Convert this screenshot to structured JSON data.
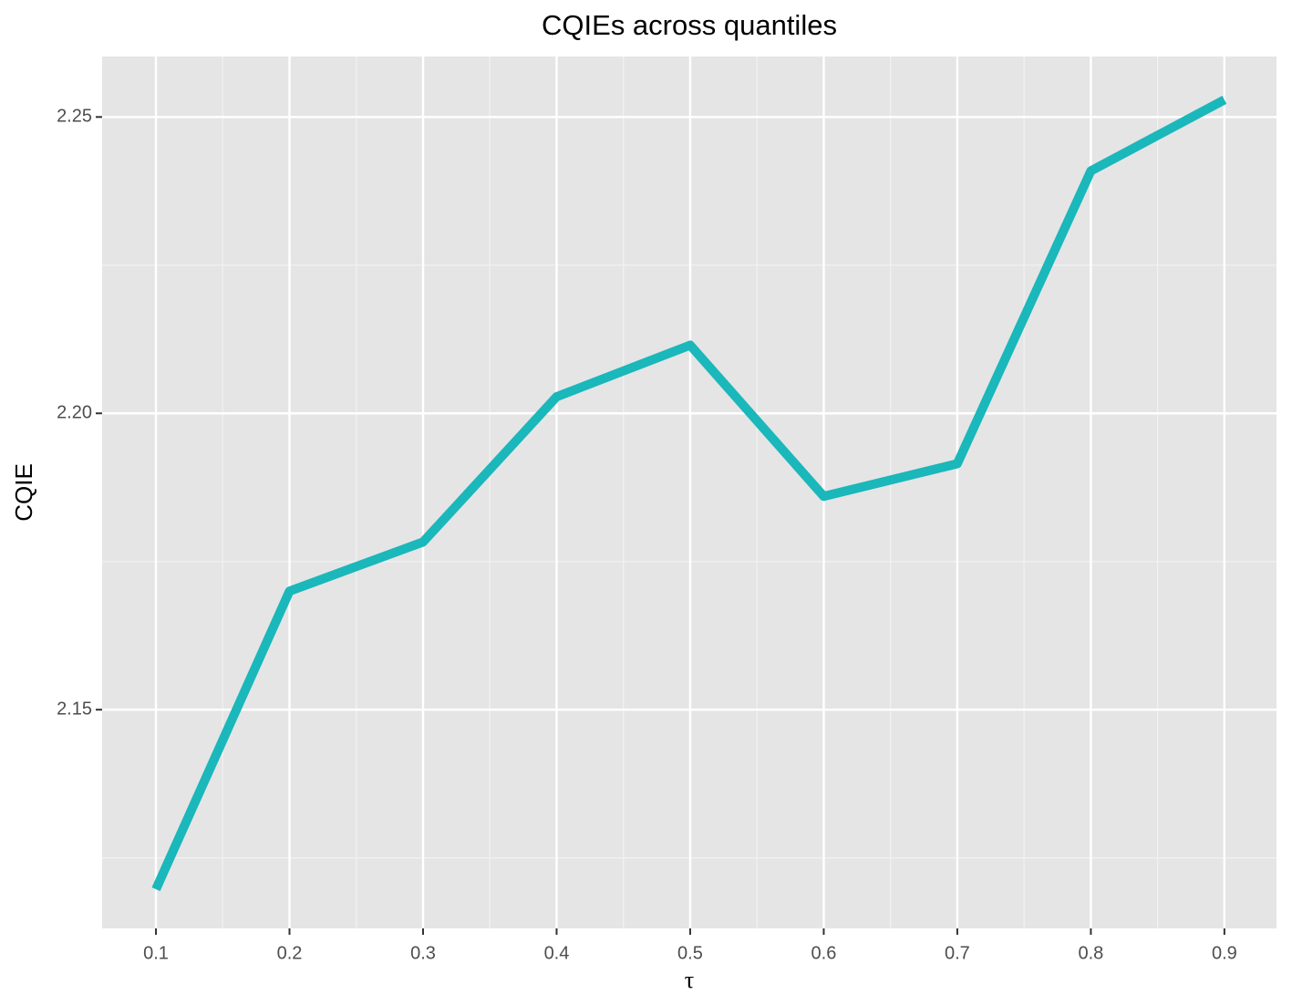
{
  "chart_data": {
    "type": "line",
    "title": "CQIEs across quantiles",
    "x_label": "τ",
    "y_label": "CQIE",
    "x": [
      0.1,
      0.2,
      0.3,
      0.4,
      0.5,
      0.6,
      0.7,
      0.8,
      0.9
    ],
    "series": [
      {
        "color": "#1ab7bb",
        "values": [
          2.1197,
          2.17,
          2.1783,
          2.2028,
          2.2115,
          2.186,
          2.1915,
          2.2409,
          2.2529
        ]
      }
    ],
    "xlim": [
      0.0597,
      0.939
    ],
    "ylim": [
      2.1131,
      2.2602
    ],
    "xticks": [
      0.1,
      0.2,
      0.3,
      0.4,
      0.5,
      0.6,
      0.7,
      0.8,
      0.9
    ],
    "yticks": [
      2.15,
      {
        "value": 2.2,
        "label": "2.20"
      },
      2.25
    ],
    "grid": true
  }
}
